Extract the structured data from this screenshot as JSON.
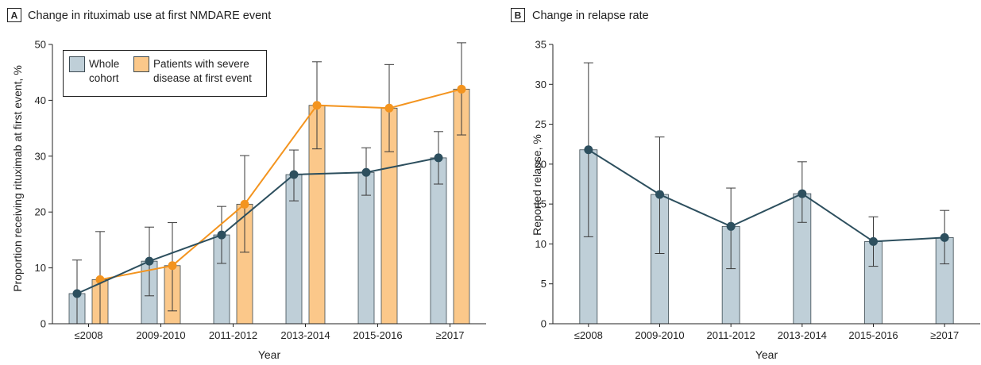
{
  "colors": {
    "whole_bar": "#bfcfd8",
    "whole_line": "#2d4f5e",
    "severe_bar": "#fbc88a",
    "severe_line": "#f3941f",
    "bar_stroke": "#3c4a52",
    "axis": "#222222"
  },
  "chart_data": [
    {
      "type": "bar",
      "panel_letter": "A",
      "title": "Change in rituximab use at first NMDARE event",
      "xlabel": "Year",
      "ylabel": "Proportion receiving rituximab at first event, %",
      "ylim": [
        0,
        50
      ],
      "yticks": [
        "0",
        "10",
        "20",
        "30",
        "40",
        "50"
      ],
      "categories": [
        "≤2008",
        "2009-2010",
        "2011-2012",
        "2013-2014",
        "2015-2016",
        "≥2017"
      ],
      "legend_position": "top-left",
      "series": [
        {
          "name": "Whole cohort",
          "legend_lines": [
            "Whole",
            "cohort"
          ],
          "values": [
            5.4,
            11.2,
            15.9,
            26.7,
            27.1,
            29.7
          ],
          "ci_low": [
            0,
            5.0,
            10.8,
            22.0,
            23.0,
            25.0
          ],
          "ci_high": [
            11.4,
            17.3,
            21.0,
            31.1,
            31.5,
            34.4
          ]
        },
        {
          "name": "Patients with severe disease at first event",
          "legend_lines": [
            "Patients with severe",
            "disease at first event"
          ],
          "values": [
            7.9,
            10.4,
            21.4,
            39.1,
            38.6,
            42.0
          ],
          "ci_low": [
            0,
            2.3,
            12.8,
            31.3,
            30.8,
            33.8
          ],
          "ci_high": [
            16.5,
            18.1,
            30.1,
            46.9,
            46.4,
            50.3
          ]
        }
      ]
    },
    {
      "type": "bar",
      "panel_letter": "B",
      "title": "Change in relapse rate",
      "xlabel": "Year",
      "ylabel": "Reported relapse,  %",
      "ylim": [
        0,
        35
      ],
      "yticks": [
        "0",
        "5",
        "10",
        "15",
        "20",
        "25",
        "30",
        "35"
      ],
      "categories": [
        "≤2008",
        "2009-2010",
        "2011-2012",
        "2013-2014",
        "2015-2016",
        "≥2017"
      ],
      "series": [
        {
          "values": [
            21.8,
            16.2,
            12.2,
            16.3,
            10.3,
            10.8
          ],
          "ci_low": [
            10.9,
            8.8,
            6.9,
            12.7,
            7.2,
            7.5
          ],
          "ci_high": [
            32.7,
            23.4,
            17.0,
            20.3,
            13.4,
            14.2
          ]
        }
      ]
    }
  ]
}
